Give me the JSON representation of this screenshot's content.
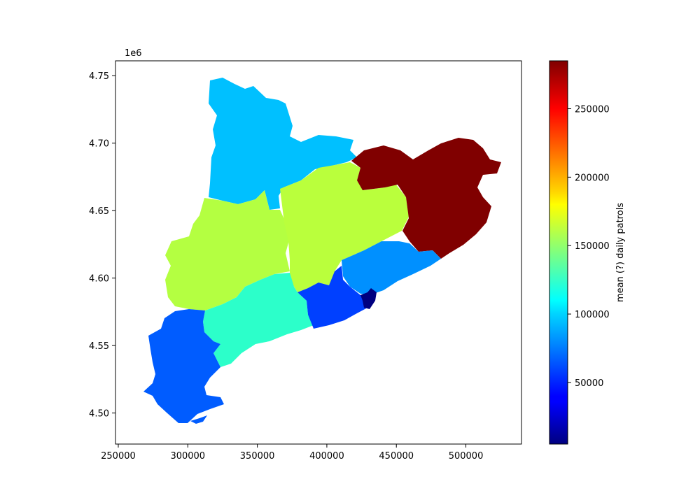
{
  "chart_data": {
    "type": "choropleth",
    "x_ticks": [
      250000,
      300000,
      350000,
      400000,
      450000,
      500000
    ],
    "x_tick_labels": [
      "250000",
      "300000",
      "350000",
      "400000",
      "450000",
      "500000"
    ],
    "y_ticks": [
      4.5,
      4.55,
      4.6,
      4.65,
      4.7,
      4.75
    ],
    "y_tick_labels": [
      "4.50",
      "4.55",
      "4.60",
      "4.65",
      "4.70",
      "4.75"
    ],
    "y_offset_label": "1e6",
    "xlim": [
      248000,
      540000
    ],
    "ylim": [
      4.477,
      4.761
    ],
    "colorbar": {
      "label": "mean (?) daily patrols",
      "colormap": "jet",
      "range": [
        5000,
        285000
      ],
      "ticks": [
        50000,
        100000,
        150000,
        200000,
        250000
      ],
      "tick_labels": [
        "50000",
        "100000",
        "150000",
        "200000",
        "250000"
      ]
    },
    "regions": [
      {
        "value": 90000,
        "color": "#00c0ff"
      },
      {
        "value": 160000,
        "color": "#b4ff41"
      },
      {
        "value": 165000,
        "color": "#baff3c"
      },
      {
        "value": 285000,
        "color": "#800000"
      },
      {
        "value": 80000,
        "color": "#0090ff"
      },
      {
        "value": 125000,
        "color": "#2cffca"
      },
      {
        "value": 40000,
        "color": "#0040ff"
      },
      {
        "value": 60000,
        "color": "#005cff"
      },
      {
        "value": 5000,
        "color": "#000080"
      }
    ]
  }
}
